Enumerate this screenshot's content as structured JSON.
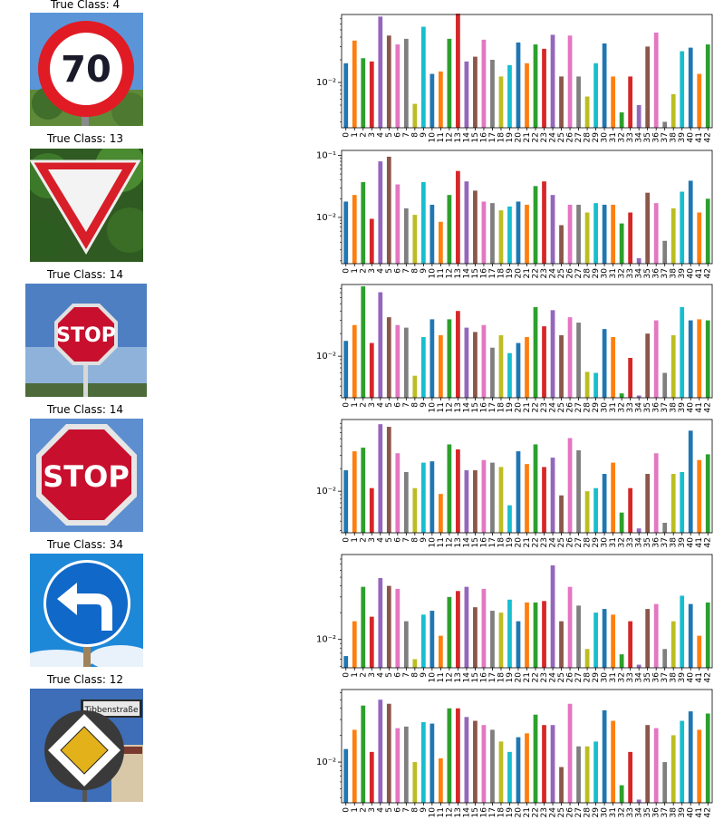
{
  "colors": [
    "#1f77b4",
    "#ff7f0e",
    "#2ca02c",
    "#d62728",
    "#9467bd",
    "#8c564b",
    "#e377c2",
    "#7f7f7f",
    "#bcbd22",
    "#17becf"
  ],
  "panels": [
    {
      "title": "True Class: 4",
      "image": "speed-limit-70-sign",
      "sign_text": "70",
      "chart_data": {
        "type": "bar",
        "yscale": "log",
        "ylim": [
          0.0025,
          0.08
        ],
        "yticks": [
          {
            "value": 0.01,
            "label": "10⁻²"
          }
        ],
        "categories": [
          "0",
          "1",
          "2",
          "3",
          "4",
          "5",
          "6",
          "7",
          "8",
          "9",
          "10",
          "11",
          "12",
          "13",
          "14",
          "15",
          "16",
          "17",
          "18",
          "19",
          "20",
          "21",
          "22",
          "23",
          "24",
          "25",
          "26",
          "27",
          "28",
          "29",
          "30",
          "31",
          "32",
          "33",
          "34",
          "35",
          "36",
          "37",
          "38",
          "39",
          "40",
          "41",
          "42"
        ],
        "values": [
          0.018,
          0.036,
          0.021,
          0.019,
          0.075,
          0.042,
          0.032,
          0.038,
          0.0052,
          0.055,
          0.013,
          0.014,
          0.038,
          0.082,
          0.019,
          0.022,
          0.037,
          0.02,
          0.012,
          0.017,
          0.034,
          0.018,
          0.032,
          0.028,
          0.043,
          0.012,
          0.042,
          0.012,
          0.0065,
          0.018,
          0.033,
          0.012,
          0.004,
          0.012,
          0.005,
          0.03,
          0.046,
          0.003,
          0.007,
          0.026,
          0.029,
          0.013,
          0.032
        ]
      }
    },
    {
      "title": "True Class: 13",
      "image": "yield-sign",
      "chart_data": {
        "type": "bar",
        "yscale": "log",
        "ylim": [
          0.0018,
          0.12
        ],
        "yticks": [
          {
            "value": 0.1,
            "label": "10⁻¹"
          },
          {
            "value": 0.01,
            "label": "10⁻²"
          }
        ],
        "categories": [
          "0",
          "1",
          "2",
          "3",
          "4",
          "5",
          "6",
          "7",
          "8",
          "9",
          "10",
          "11",
          "12",
          "13",
          "14",
          "15",
          "16",
          "17",
          "18",
          "19",
          "20",
          "21",
          "22",
          "23",
          "24",
          "25",
          "26",
          "27",
          "28",
          "29",
          "30",
          "31",
          "32",
          "33",
          "34",
          "35",
          "36",
          "37",
          "38",
          "39",
          "40",
          "41",
          "42"
        ],
        "values": [
          0.018,
          0.023,
          0.037,
          0.0095,
          0.08,
          0.095,
          0.034,
          0.014,
          0.011,
          0.037,
          0.016,
          0.0085,
          0.023,
          0.056,
          0.038,
          0.027,
          0.018,
          0.017,
          0.013,
          0.015,
          0.018,
          0.016,
          0.032,
          0.038,
          0.023,
          0.0075,
          0.016,
          0.016,
          0.012,
          0.017,
          0.016,
          0.016,
          0.008,
          0.012,
          0.0022,
          0.025,
          0.017,
          0.0042,
          0.014,
          0.026,
          0.039,
          0.012,
          0.02
        ]
      }
    },
    {
      "title": "True Class: 14",
      "image": "stop-sign-sky",
      "sign_text": "STOP",
      "chart_data": {
        "type": "bar",
        "yscale": "log",
        "ylim": [
          0.0028,
          0.09
        ],
        "yticks": [
          {
            "value": 0.01,
            "label": "10⁻²"
          }
        ],
        "categories": [
          "0",
          "1",
          "2",
          "3",
          "4",
          "5",
          "6",
          "7",
          "8",
          "9",
          "10",
          "11",
          "12",
          "13",
          "14",
          "15",
          "16",
          "17",
          "18",
          "19",
          "20",
          "21",
          "22",
          "23",
          "24",
          "25",
          "26",
          "27",
          "28",
          "29",
          "30",
          "31",
          "32",
          "33",
          "34",
          "35",
          "36",
          "37",
          "38",
          "39",
          "40",
          "41",
          "42"
        ],
        "values": [
          0.016,
          0.026,
          0.085,
          0.015,
          0.071,
          0.033,
          0.026,
          0.024,
          0.0055,
          0.018,
          0.031,
          0.019,
          0.031,
          0.04,
          0.024,
          0.021,
          0.026,
          0.013,
          0.019,
          0.011,
          0.015,
          0.018,
          0.045,
          0.025,
          0.041,
          0.019,
          0.033,
          0.028,
          0.0062,
          0.006,
          0.023,
          0.018,
          0.0032,
          0.0095,
          0.003,
          0.02,
          0.03,
          0.006,
          0.019,
          0.045,
          0.03,
          0.031,
          0.03
        ]
      }
    },
    {
      "title": "True Class: 14",
      "image": "stop-sign-closeup",
      "sign_text": "STOP",
      "chart_data": {
        "type": "bar",
        "yscale": "log",
        "ylim": [
          0.0028,
          0.09
        ],
        "yticks": [
          {
            "value": 0.01,
            "label": "10⁻²"
          }
        ],
        "categories": [
          "0",
          "1",
          "2",
          "3",
          "4",
          "5",
          "6",
          "7",
          "8",
          "9",
          "10",
          "11",
          "12",
          "13",
          "14",
          "15",
          "16",
          "17",
          "18",
          "19",
          "20",
          "21",
          "22",
          "23",
          "24",
          "25",
          "26",
          "27",
          "28",
          "29",
          "30",
          "31",
          "32",
          "33",
          "34",
          "35",
          "36",
          "37",
          "38",
          "39",
          "40",
          "41",
          "42"
        ],
        "values": [
          0.019,
          0.034,
          0.038,
          0.011,
          0.078,
          0.072,
          0.032,
          0.018,
          0.011,
          0.024,
          0.025,
          0.0092,
          0.042,
          0.036,
          0.019,
          0.019,
          0.026,
          0.024,
          0.021,
          0.0065,
          0.034,
          0.023,
          0.042,
          0.021,
          0.028,
          0.0088,
          0.051,
          0.035,
          0.01,
          0.011,
          0.017,
          0.024,
          0.0052,
          0.011,
          0.0032,
          0.017,
          0.032,
          0.0038,
          0.017,
          0.018,
          0.064,
          0.026,
          0.031
        ]
      }
    },
    {
      "title": "True Class: 34",
      "image": "turn-left-ahead-sign",
      "chart_data": {
        "type": "bar",
        "yscale": "log",
        "ylim": [
          0.0048,
          0.09
        ],
        "yticks": [
          {
            "value": 0.01,
            "label": "10⁻²"
          }
        ],
        "categories": [
          "0",
          "1",
          "2",
          "3",
          "4",
          "5",
          "6",
          "7",
          "8",
          "9",
          "10",
          "11",
          "12",
          "13",
          "14",
          "15",
          "16",
          "17",
          "18",
          "19",
          "20",
          "21",
          "22",
          "23",
          "24",
          "25",
          "26",
          "27",
          "28",
          "29",
          "30",
          "31",
          "32",
          "33",
          "34",
          "35",
          "36",
          "37",
          "38",
          "39",
          "40",
          "41",
          "42"
        ],
        "values": [
          0.0065,
          0.016,
          0.039,
          0.018,
          0.049,
          0.04,
          0.037,
          0.016,
          0.006,
          0.019,
          0.021,
          0.011,
          0.03,
          0.035,
          0.039,
          0.023,
          0.037,
          0.021,
          0.02,
          0.028,
          0.016,
          0.026,
          0.026,
          0.027,
          0.068,
          0.016,
          0.039,
          0.024,
          0.0078,
          0.02,
          0.022,
          0.019,
          0.0068,
          0.016,
          0.0052,
          0.022,
          0.025,
          0.0078,
          0.016,
          0.031,
          0.025,
          0.011,
          0.026
        ]
      }
    },
    {
      "title": "True Class: 12",
      "image": "priority-road-sign",
      "street_sign_text": "Tibbenstraße",
      "chart_data": {
        "type": "bar",
        "yscale": "log",
        "ylim": [
          0.0035,
          0.065
        ],
        "yticks": [
          {
            "value": 0.01,
            "label": "10⁻²"
          }
        ],
        "categories": [
          "0",
          "1",
          "2",
          "3",
          "4",
          "5",
          "6",
          "7",
          "8",
          "9",
          "10",
          "11",
          "12",
          "13",
          "14",
          "15",
          "16",
          "17",
          "18",
          "19",
          "20",
          "21",
          "22",
          "23",
          "24",
          "25",
          "26",
          "27",
          "28",
          "29",
          "30",
          "31",
          "32",
          "33",
          "34",
          "35",
          "36",
          "37",
          "38",
          "39",
          "40",
          "41",
          "42"
        ],
        "values": [
          0.014,
          0.023,
          0.043,
          0.013,
          0.05,
          0.045,
          0.024,
          0.025,
          0.01,
          0.028,
          0.027,
          0.011,
          0.04,
          0.04,
          0.032,
          0.029,
          0.026,
          0.023,
          0.017,
          0.013,
          0.019,
          0.021,
          0.034,
          0.026,
          0.026,
          0.0088,
          0.045,
          0.015,
          0.015,
          0.017,
          0.038,
          0.029,
          0.0055,
          0.013,
          0.0038,
          0.026,
          0.024,
          0.01,
          0.02,
          0.029,
          0.037,
          0.023,
          0.035
        ]
      }
    }
  ]
}
